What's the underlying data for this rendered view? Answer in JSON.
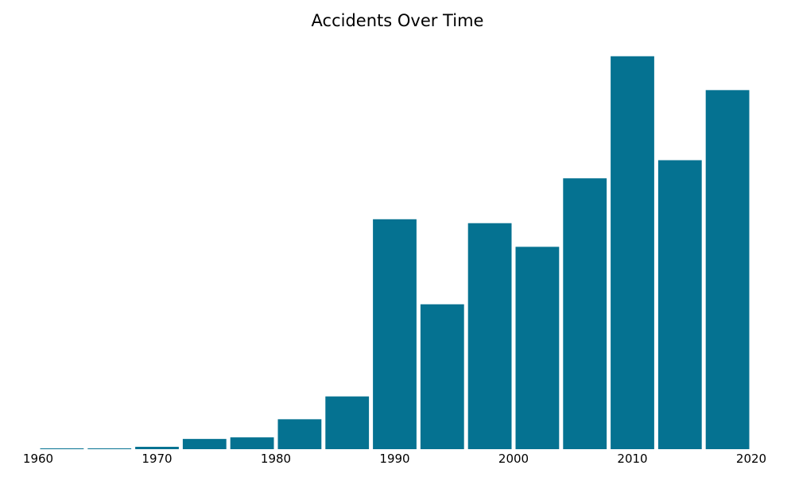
{
  "chart_data": {
    "type": "bar",
    "title": "Accidents Over Time",
    "xlabel": "",
    "ylabel": "",
    "bin_start": [
      1960,
      1964,
      1968,
      1972,
      1976,
      1980,
      1984,
      1988,
      1992,
      1996,
      2000,
      2004,
      2008,
      2012,
      2016
    ],
    "bin_width": 4,
    "values": [
      1,
      1,
      3,
      13,
      15,
      38,
      67,
      292,
      184,
      287,
      257,
      344,
      499,
      367,
      456
    ],
    "xlim": [
      1960,
      2020
    ],
    "ylim": [
      0,
      525
    ],
    "xticks": [
      1960,
      1970,
      1980,
      1990,
      2000,
      2010,
      2020
    ],
    "xtick_labels": [
      "1960",
      "1970",
      "1980",
      "1990",
      "2000",
      "2010",
      "2020"
    ],
    "bar_color": "#057291",
    "grid": false,
    "y_axis_visible": false
  }
}
